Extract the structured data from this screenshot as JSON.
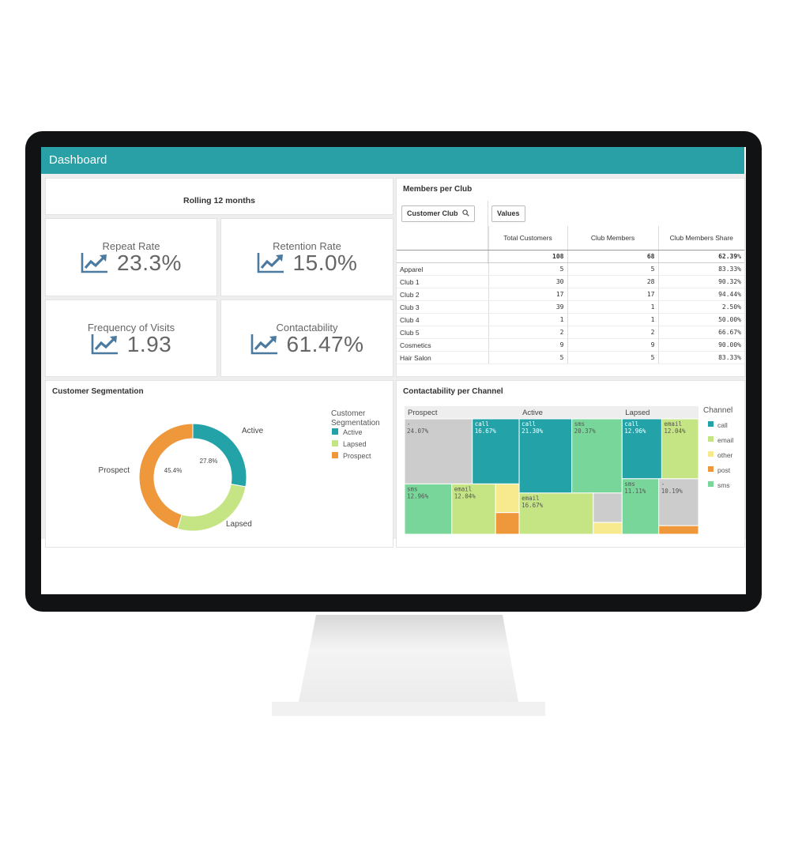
{
  "app": {
    "title": "Dashboard"
  },
  "colors": {
    "accent": "#28a0a6",
    "call": "#23a3a8",
    "email": "#c5e585",
    "other": "#f7e98e",
    "post": "#ee983b",
    "sms": "#79d69a",
    "none": "#cccccc"
  },
  "rolling": {
    "label": "Rolling 12 months"
  },
  "kpis": [
    {
      "label": "Repeat Rate",
      "value": "23.3%",
      "icon": "trend-up-icon"
    },
    {
      "label": "Retention Rate",
      "value": "15.0%",
      "icon": "trend-up-icon"
    },
    {
      "label": "Frequency of Visits",
      "value": "1.93",
      "icon": "trend-up-icon"
    },
    {
      "label": "Contactability",
      "value": "61.47%",
      "icon": "trend-up-icon"
    }
  ],
  "members": {
    "title": "Members per Club",
    "filter_label": "Customer Club",
    "values_label": "Values",
    "columns": [
      "Total Customers",
      "Club Members",
      "Club Members Share"
    ],
    "total": {
      "total": "108",
      "members": "68",
      "share": "62.39%"
    },
    "rows": [
      {
        "club": "Apparel",
        "total": "5",
        "members": "5",
        "share": "83.33%"
      },
      {
        "club": "Club 1",
        "total": "30",
        "members": "28",
        "share": "90.32%"
      },
      {
        "club": "Club 2",
        "total": "17",
        "members": "17",
        "share": "94.44%"
      },
      {
        "club": "Club 3",
        "total": "39",
        "members": "1",
        "share": "2.50%"
      },
      {
        "club": "Club 4",
        "total": "1",
        "members": "1",
        "share": "50.00%"
      },
      {
        "club": "Club 5",
        "total": "2",
        "members": "2",
        "share": "66.67%"
      },
      {
        "club": "Cosmetics",
        "total": "9",
        "members": "9",
        "share": "90.00%"
      },
      {
        "club": "Hair Salon",
        "total": "5",
        "members": "5",
        "share": "83.33%"
      }
    ]
  },
  "chart_data": [
    {
      "type": "pie",
      "title": "Customer Segmentation",
      "legend_title": "Customer Segmentation",
      "legend": "right",
      "categories": [
        "Active",
        "Lapsed",
        "Prospect"
      ],
      "values": [
        27.8,
        26.8,
        45.4
      ],
      "data_labels": [
        "27.8%",
        "",
        "45.4%"
      ],
      "colors": [
        "#23a3a8",
        "#c5e585",
        "#ee983b"
      ]
    },
    {
      "type": "treemap",
      "title": "Contactability per Channel",
      "legend_title": "Channel",
      "legend_items": [
        "call",
        "email",
        "other",
        "post",
        "sms"
      ],
      "groups": [
        {
          "name": "Prospect",
          "cells": [
            {
              "channel": "-",
              "value": 24.07,
              "label": "-",
              "pct": "24.07%"
            },
            {
              "channel": "call",
              "value": 16.67,
              "label": "call",
              "pct": "16.67%"
            },
            {
              "channel": "sms",
              "value": 12.96,
              "label": "sms",
              "pct": "12.96%"
            },
            {
              "channel": "email",
              "value": 12.04,
              "label": "email",
              "pct": "12.04%"
            },
            {
              "channel": "other",
              "value": 3.7
            },
            {
              "channel": "post",
              "value": 2.78
            }
          ]
        },
        {
          "name": "Active",
          "cells": [
            {
              "channel": "call",
              "value": 21.3,
              "label": "call",
              "pct": "21.30%"
            },
            {
              "channel": "sms",
              "value": 20.37,
              "label": "sms",
              "pct": "20.37%"
            },
            {
              "channel": "email",
              "value": 16.67,
              "label": "email",
              "pct": "16.67%"
            },
            {
              "channel": "-",
              "value": 4.63
            },
            {
              "channel": "other",
              "value": 1.85
            }
          ]
        },
        {
          "name": "Lapsed",
          "cells": [
            {
              "channel": "call",
              "value": 12.96,
              "label": "call",
              "pct": "12.96%"
            },
            {
              "channel": "email",
              "value": 12.04,
              "label": "email",
              "pct": "12.04%"
            },
            {
              "channel": "sms",
              "value": 11.11,
              "label": "sms",
              "pct": "11.11%"
            },
            {
              "channel": "-",
              "value": 10.19,
              "label": "-",
              "pct": "10.19%"
            },
            {
              "channel": "post",
              "value": 1.85
            }
          ]
        }
      ]
    }
  ]
}
